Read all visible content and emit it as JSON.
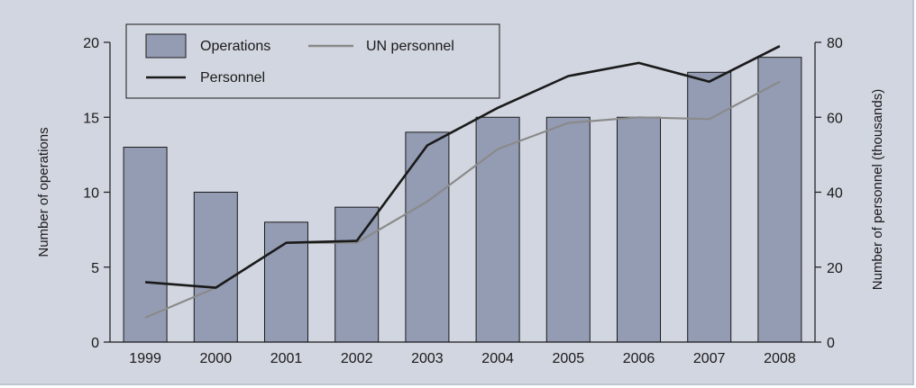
{
  "chart_data": {
    "type": "bar",
    "categories": [
      "1999",
      "2000",
      "2001",
      "2002",
      "2003",
      "2004",
      "2005",
      "2006",
      "2007",
      "2008"
    ],
    "series": [
      {
        "name": "Operations",
        "type": "bar",
        "axis": "left",
        "values": [
          13,
          10,
          8,
          9,
          14,
          15,
          15,
          15,
          18,
          19
        ]
      },
      {
        "name": "Personnel",
        "type": "line",
        "axis": "right",
        "values": [
          16,
          14.5,
          26.5,
          27,
          52.5,
          62.5,
          71,
          74.5,
          69.5,
          79
        ],
        "color": "#1a1a1a"
      },
      {
        "name": "UN personnel",
        "type": "line",
        "axis": "right",
        "values": [
          6.5,
          14.5,
          26.5,
          26.5,
          37.5,
          51.5,
          58.5,
          60,
          59.5,
          69.5
        ],
        "color": "#8a8a8a"
      }
    ],
    "y_left": {
      "label": "Number of operations",
      "ylim": [
        0,
        20
      ],
      "ticks": [
        0,
        5,
        10,
        15,
        20
      ]
    },
    "y_right": {
      "label": "Number of personnel (thousands)",
      "ylim": [
        0,
        80
      ],
      "ticks": [
        0,
        20,
        40,
        60,
        80
      ]
    },
    "legend": {
      "placement": "top-left",
      "entries": [
        "Operations",
        "UN personnel",
        "Personnel"
      ]
    },
    "colors": {
      "bar_fill": "#949cb4",
      "bar_stroke": "#1a1a1a",
      "background": "#d2d6e0"
    },
    "grid": false
  }
}
